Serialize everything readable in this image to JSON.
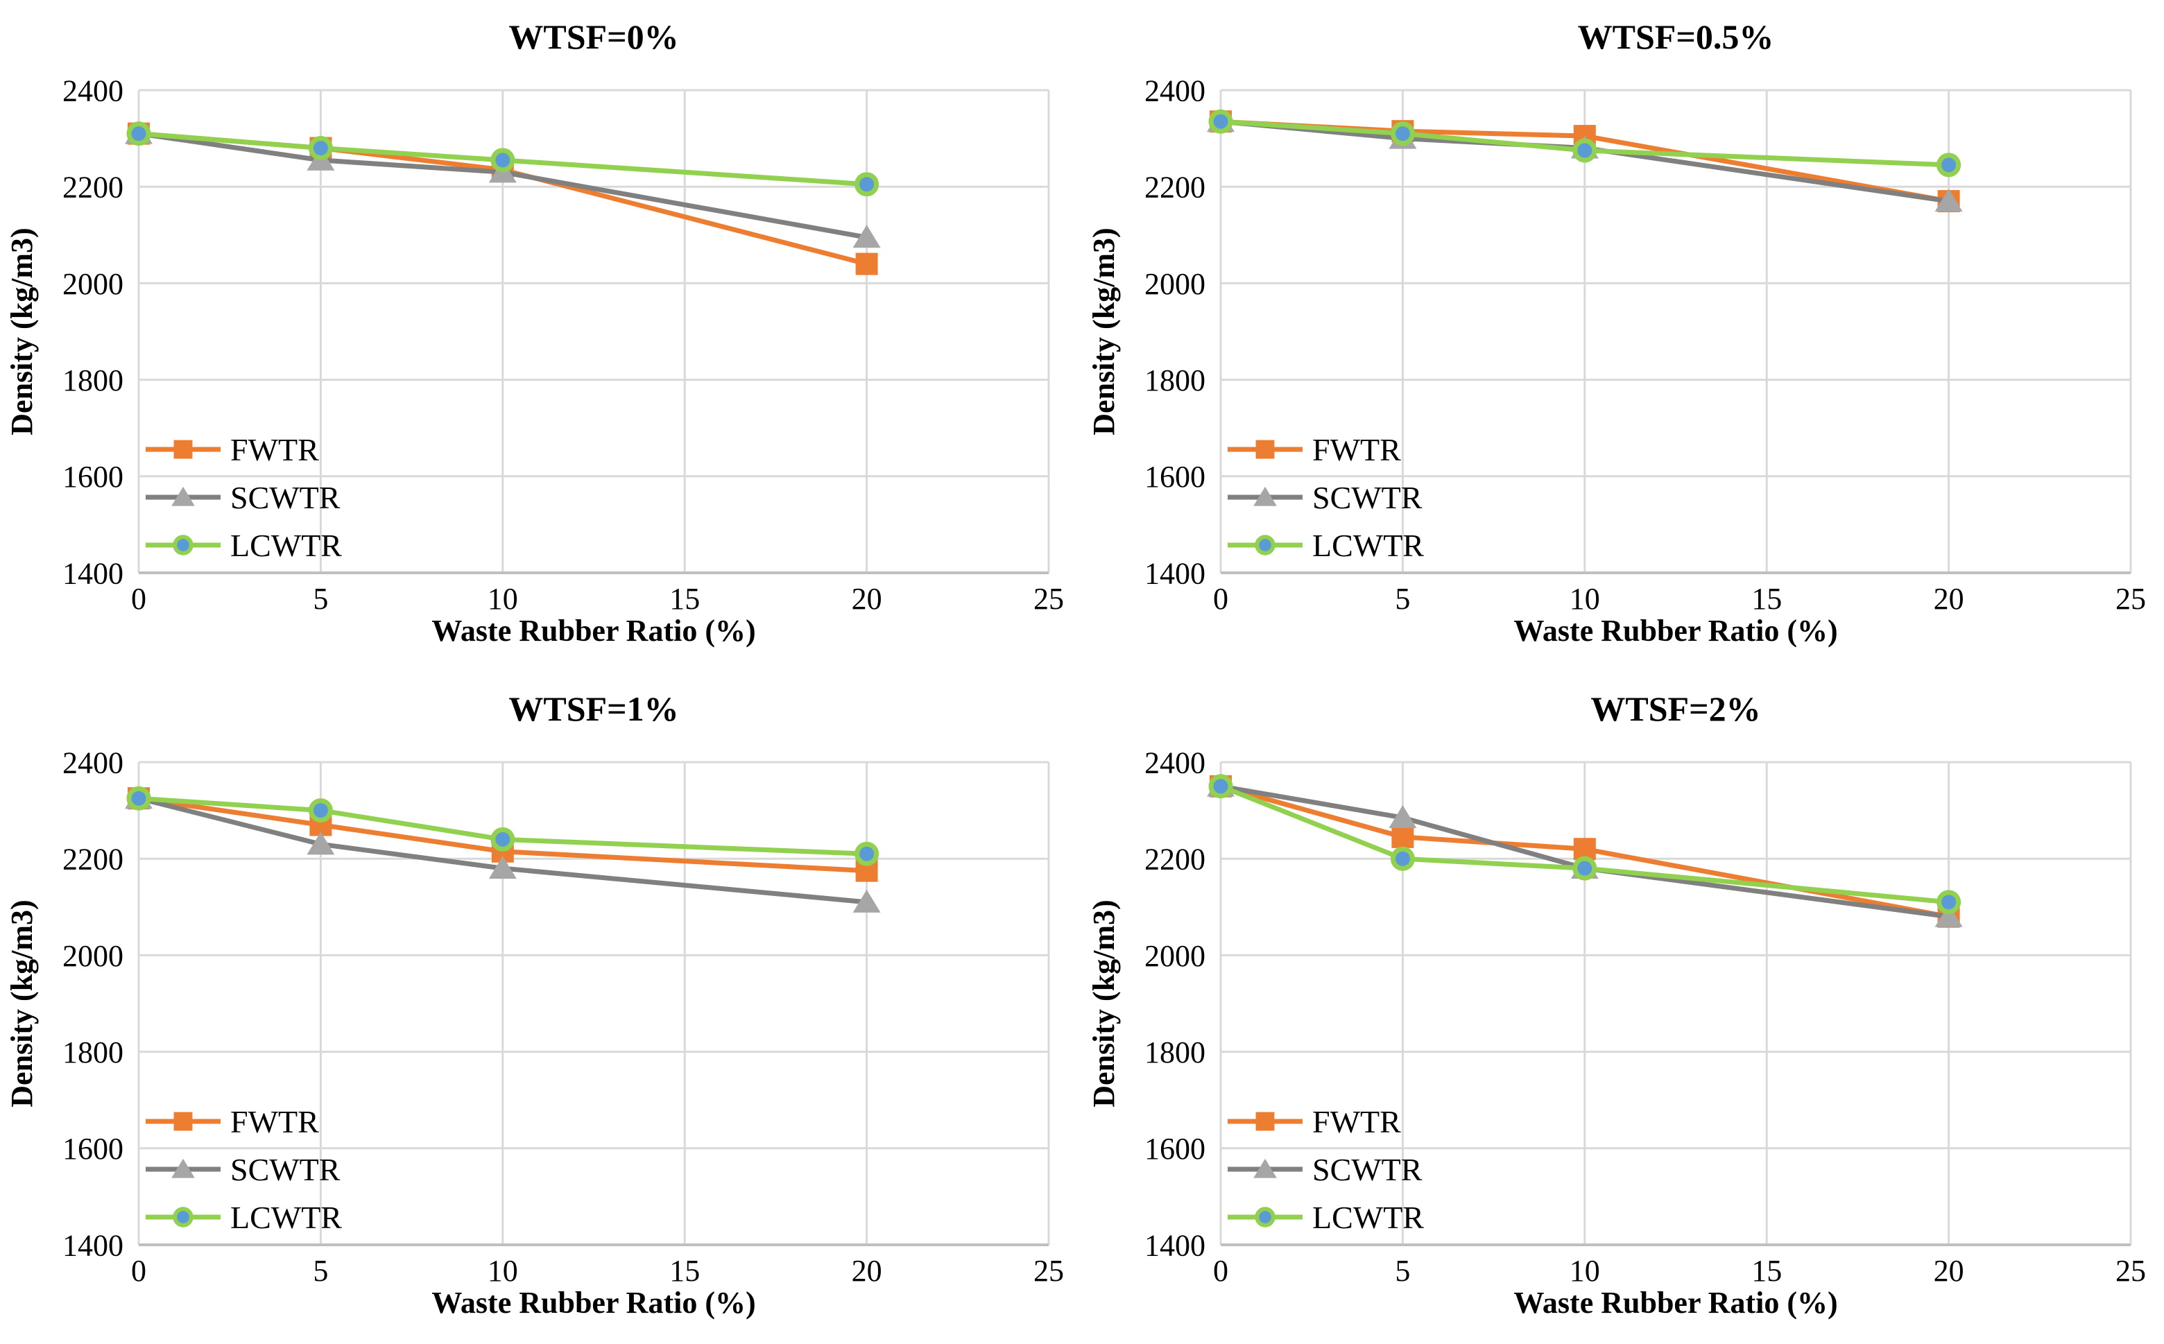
{
  "page": {
    "background": "#ffffff"
  },
  "styles": {
    "grid_color": "#d9d9d9",
    "axis_color": "#bfbfbf",
    "text_color": "#000000",
    "series": [
      {
        "name": "FWTR",
        "line_color": "#ED7D31",
        "marker": "square",
        "marker_fill": "#ED7D31",
        "marker_stroke": "#ED7D31"
      },
      {
        "name": "SCWTR",
        "line_color": "#808080",
        "marker": "triangle",
        "marker_fill": "#A6A6A6",
        "marker_stroke": "#A6A6A6"
      },
      {
        "name": "LCWTR",
        "line_color": "#92D050",
        "marker": "circle",
        "marker_fill": "#5B9BD5",
        "marker_stroke": "#92D050"
      }
    ]
  },
  "chart_data": [
    {
      "type": "line",
      "title": "WTSF=0%",
      "xlabel": "Waste Rubber Ratio (%)",
      "ylabel": "Density (kg/m3)",
      "x": [
        0,
        5,
        10,
        20
      ],
      "xlim": [
        0,
        25
      ],
      "ylim": [
        1400,
        2400
      ],
      "x_ticks": [
        0,
        5,
        10,
        15,
        20,
        25
      ],
      "y_ticks": [
        1400,
        1600,
        1800,
        2000,
        2200,
        2400
      ],
      "grid": true,
      "legend_position": "inside-bottom-left",
      "series": [
        {
          "name": "FWTR",
          "values": [
            2310,
            2280,
            2235,
            2040
          ]
        },
        {
          "name": "SCWTR",
          "values": [
            2310,
            2255,
            2230,
            2095
          ]
        },
        {
          "name": "LCWTR",
          "values": [
            2310,
            2280,
            2255,
            2205
          ]
        }
      ]
    },
    {
      "type": "line",
      "title": "WTSF=0.5%",
      "xlabel": "Waste Rubber Ratio (%)",
      "ylabel": "Density (kg/m3)",
      "x": [
        0,
        5,
        10,
        20
      ],
      "xlim": [
        0,
        25
      ],
      "ylim": [
        1400,
        2400
      ],
      "x_ticks": [
        0,
        5,
        10,
        15,
        20,
        25
      ],
      "y_ticks": [
        1400,
        1600,
        1800,
        2000,
        2200,
        2400
      ],
      "grid": true,
      "legend_position": "inside-bottom-left",
      "series": [
        {
          "name": "FWTR",
          "values": [
            2335,
            2315,
            2305,
            2170
          ]
        },
        {
          "name": "SCWTR",
          "values": [
            2335,
            2300,
            2280,
            2170
          ]
        },
        {
          "name": "LCWTR",
          "values": [
            2335,
            2310,
            2275,
            2245
          ]
        }
      ]
    },
    {
      "type": "line",
      "title": "WTSF=1%",
      "xlabel": "Waste Rubber Ratio (%)",
      "ylabel": "Density (kg/m3)",
      "x": [
        0,
        5,
        10,
        20
      ],
      "xlim": [
        0,
        25
      ],
      "ylim": [
        1400,
        2400
      ],
      "x_ticks": [
        0,
        5,
        10,
        15,
        20,
        25
      ],
      "y_ticks": [
        1400,
        1600,
        1800,
        2000,
        2200,
        2400
      ],
      "grid": true,
      "legend_position": "inside-bottom-left",
      "series": [
        {
          "name": "FWTR",
          "values": [
            2325,
            2270,
            2215,
            2175
          ]
        },
        {
          "name": "SCWTR",
          "values": [
            2325,
            2230,
            2180,
            2110
          ]
        },
        {
          "name": "LCWTR",
          "values": [
            2325,
            2300,
            2240,
            2210
          ]
        }
      ]
    },
    {
      "type": "line",
      "title": "WTSF=2%",
      "xlabel": "Waste Rubber Ratio (%)",
      "ylabel": "Density (kg/m3)",
      "x": [
        0,
        5,
        10,
        20
      ],
      "xlim": [
        0,
        25
      ],
      "ylim": [
        1400,
        2400
      ],
      "x_ticks": [
        0,
        5,
        10,
        15,
        20,
        25
      ],
      "y_ticks": [
        1400,
        1600,
        1800,
        2000,
        2200,
        2400
      ],
      "grid": true,
      "legend_position": "inside-bottom-left",
      "series": [
        {
          "name": "FWTR",
          "values": [
            2350,
            2245,
            2220,
            2080
          ]
        },
        {
          "name": "SCWTR",
          "values": [
            2350,
            2285,
            2180,
            2080
          ]
        },
        {
          "name": "LCWTR",
          "values": [
            2350,
            2200,
            2180,
            2110
          ]
        }
      ]
    }
  ]
}
